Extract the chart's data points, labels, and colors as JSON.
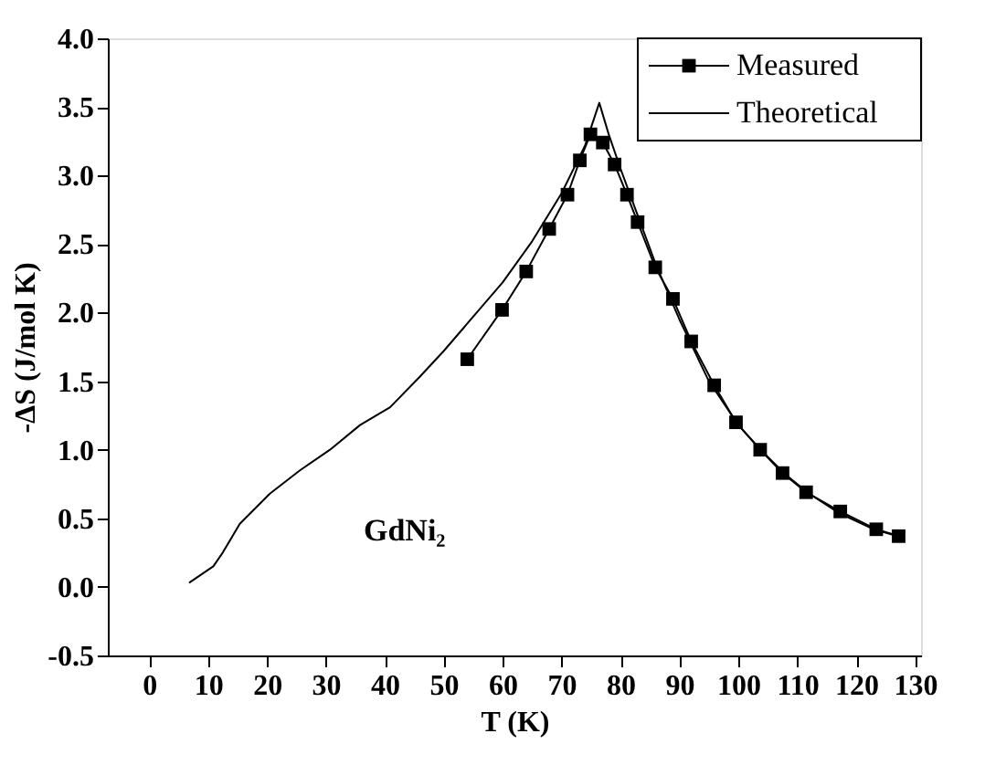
{
  "chart_data": {
    "type": "line",
    "xlabel": "T (K)",
    "ylabel": "-ΔS (J/mol K)",
    "xlim": [
      -7,
      131
    ],
    "xticks": [
      0,
      10,
      20,
      30,
      40,
      50,
      60,
      70,
      80,
      90,
      100,
      110,
      120,
      130
    ],
    "ylim": [
      -0.5,
      4.0
    ],
    "yticks": [
      {
        "value": -0.5,
        "label": "-0.5"
      },
      {
        "value": 0,
        "label": "0.0"
      },
      {
        "value": 0.5,
        "label": "0.5"
      },
      {
        "value": 1,
        "label": "1.0"
      },
      {
        "value": 1.5,
        "label": "1.5"
      },
      {
        "value": 2,
        "label": "2.0"
      },
      {
        "value": 2.5,
        "label": "2.5"
      },
      {
        "value": 3,
        "label": "3.0"
      },
      {
        "value": 3.5,
        "label": "3.5"
      },
      {
        "value": 4,
        "label": "4.0"
      }
    ],
    "grid": false,
    "legend": "top right",
    "annotations": [
      "GdNi₂"
    ],
    "series": [
      {
        "name": "Measured",
        "color": "#000000",
        "marker": "square",
        "line_style": "solid",
        "x": [
          54.0,
          59.9,
          64.0,
          67.9,
          71.0,
          73.1,
          74.9,
          77.0,
          79.0,
          81.1,
          82.9,
          85.9,
          88.9,
          92.0,
          95.9,
          99.6,
          103.7,
          107.5,
          111.5,
          117.3,
          123.4,
          127.2
        ],
        "values": [
          1.66,
          2.02,
          2.3,
          2.61,
          2.86,
          3.11,
          3.3,
          3.24,
          3.08,
          2.86,
          2.66,
          2.33,
          2.1,
          1.79,
          1.47,
          1.2,
          1.0,
          0.83,
          0.69,
          0.55,
          0.42,
          0.37
        ]
      },
      {
        "name": "Theoretical",
        "color": "#000000",
        "marker": "none",
        "line_style": "solid",
        "x": [
          6.8,
          10.9,
          12.5,
          15.4,
          20.5,
          25.6,
          30.7,
          35.8,
          40.9,
          45.9,
          50,
          54,
          60,
          65,
          70,
          74,
          76.4,
          78,
          80,
          83,
          86,
          90,
          95,
          100,
          104,
          108,
          112,
          117,
          123,
          127
        ],
        "values": [
          0.03,
          0.15,
          0.25,
          0.46,
          0.68,
          0.85,
          1.0,
          1.18,
          1.31,
          1.53,
          1.72,
          1.92,
          2.22,
          2.52,
          2.87,
          3.22,
          3.53,
          3.3,
          3.05,
          2.7,
          2.35,
          1.95,
          1.5,
          1.18,
          0.99,
          0.82,
          0.68,
          0.54,
          0.42,
          0.37
        ]
      }
    ]
  }
}
